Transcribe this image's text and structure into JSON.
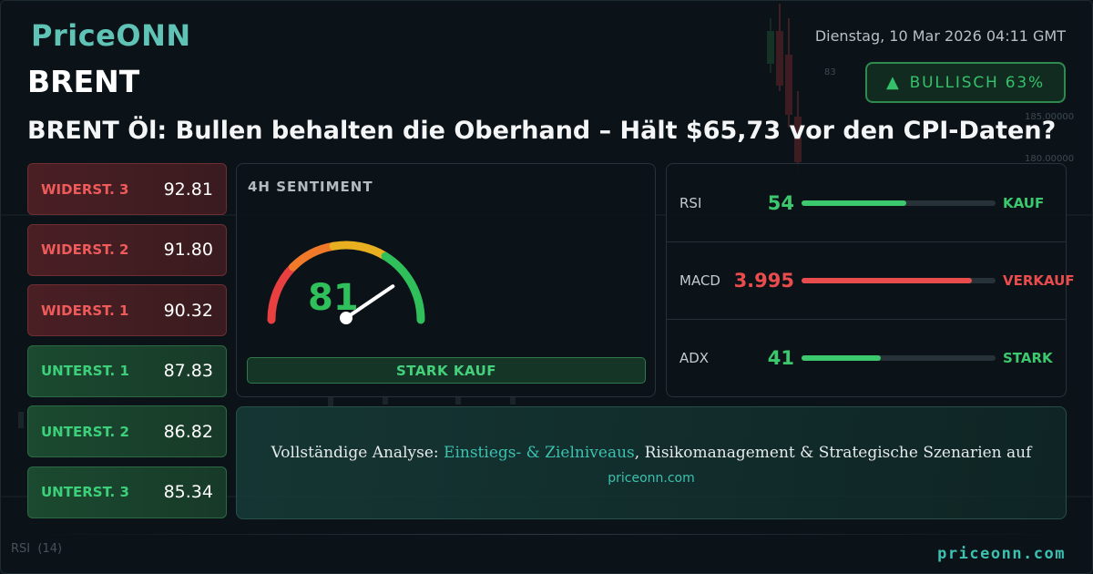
{
  "brand": {
    "logo": "PriceONN",
    "footer_domain": "priceonn.com"
  },
  "datetime": "Dienstag, 10 Mar 2026 04:11 GMT",
  "symbol": "BRENT",
  "bias": {
    "icon": "triangle-up-icon",
    "label": "BULLISCH 63%",
    "percent": 63,
    "color": "#35c06a"
  },
  "headline": "BRENT Öl: Bullen behalten die Oberhand – Hält $65,73 vor den CPI-Daten?",
  "levels": [
    {
      "label": "WIDERST. 3",
      "value": "92.81",
      "type": "resistance"
    },
    {
      "label": "WIDERST. 2",
      "value": "91.80",
      "type": "resistance"
    },
    {
      "label": "WIDERST. 1",
      "value": "90.32",
      "type": "resistance"
    },
    {
      "label": "UNTERST. 1",
      "value": "87.83",
      "type": "support"
    },
    {
      "label": "UNTERST. 2",
      "value": "86.82",
      "type": "support"
    },
    {
      "label": "UNTERST. 3",
      "value": "85.34",
      "type": "support"
    }
  ],
  "sentiment": {
    "title": "4H SENTIMENT",
    "value": 81,
    "value_text": "81",
    "signal": "STARK KAUF"
  },
  "indicators": [
    {
      "name": "RSI",
      "value": "54",
      "fill": 0.54,
      "signal": "KAUF",
      "color": "#3cc86d"
    },
    {
      "name": "MACD",
      "value": "3.995",
      "fill": 0.88,
      "signal": "VERKAUF",
      "color": "#e84c4c"
    },
    {
      "name": "ADX",
      "value": "41",
      "fill": 0.41,
      "signal": "STARK",
      "color": "#3cc86d"
    }
  ],
  "cta": {
    "prefix": "Vollständige Analyse: ",
    "highlight": "Einstiegs- & Zielniveaus",
    "suffix": ", Risikomanagement & Strategische Szenarien auf",
    "link": "priceonn.com"
  },
  "background": {
    "axis_labels": [
      "83",
      "185.00000",
      "180.00000"
    ],
    "rsi_label": "RSI",
    "rsi_period": "(14)"
  },
  "colors": {
    "accent": "#3cc1b0",
    "bullish": "#3cc86d",
    "bearish": "#e84c4c",
    "background": "#0c1318"
  }
}
